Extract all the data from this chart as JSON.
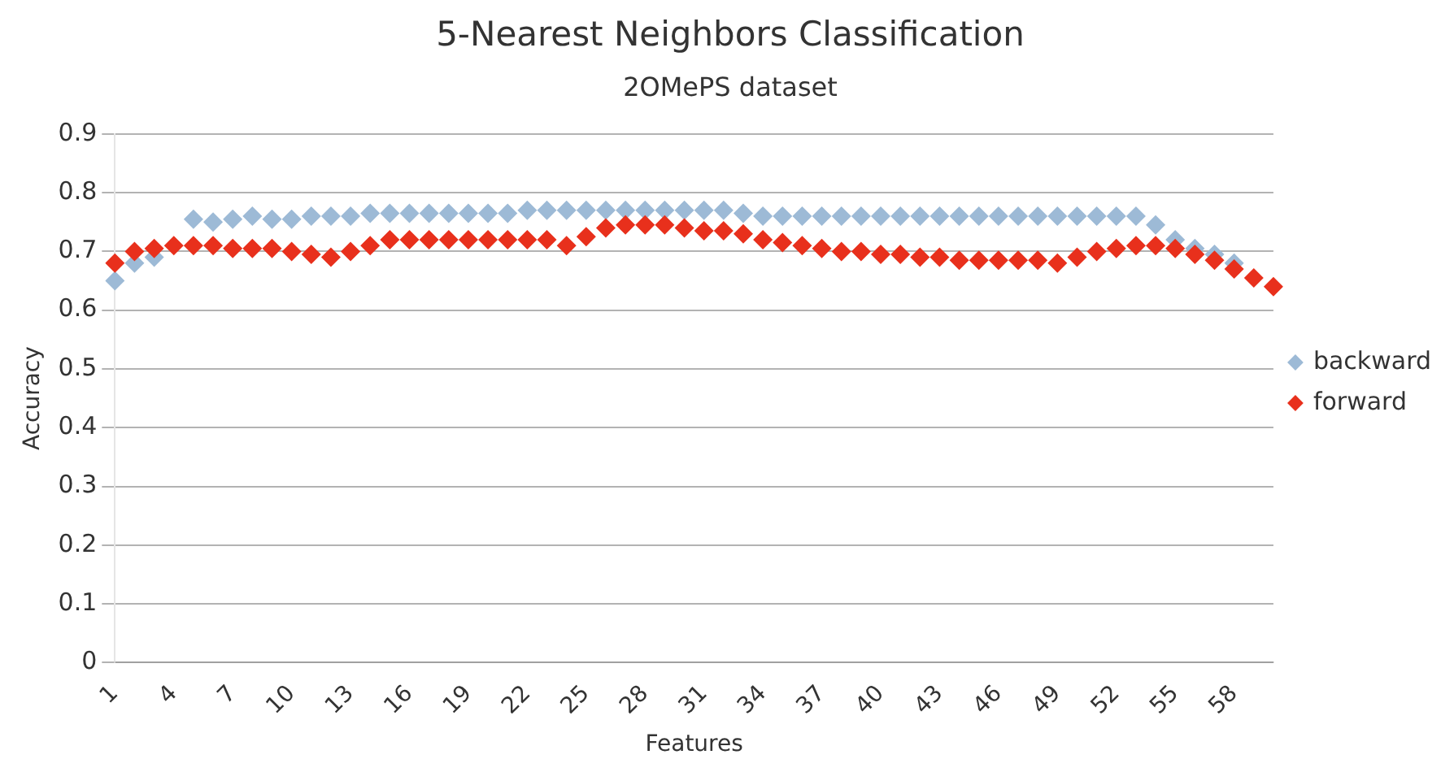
{
  "chart_data": {
    "type": "scatter",
    "title": "5-Nearest Neighbors Classification",
    "subtitle": "2OMePS dataset",
    "xlabel": "Features",
    "ylabel": "Accuracy",
    "categories": [
      "1",
      null,
      null,
      "4",
      null,
      null,
      "7",
      null,
      null,
      "10",
      null,
      null,
      "13",
      null,
      null,
      "16",
      null,
      null,
      "19",
      null,
      null,
      "22",
      null,
      null,
      "25",
      null,
      null,
      "28",
      null,
      null,
      "31",
      null,
      null,
      "34",
      null,
      null,
      "37",
      null,
      null,
      "40",
      null,
      null,
      "43",
      null,
      null,
      "46",
      null,
      null,
      "49",
      null,
      null,
      "52",
      null,
      null,
      "55",
      null,
      null,
      "58",
      null,
      null
    ],
    "series": [
      {
        "name": "backward",
        "color": "#9dbad6",
        "values": [
          0.65,
          0.68,
          0.69,
          null,
          0.755,
          0.75,
          0.755,
          0.76,
          0.755,
          0.755,
          0.76,
          0.76,
          0.76,
          0.765,
          0.765,
          0.765,
          0.765,
          0.765,
          0.765,
          0.765,
          0.765,
          0.77,
          0.77,
          0.77,
          0.77,
          0.77,
          0.77,
          0.77,
          0.77,
          0.77,
          0.77,
          0.77,
          0.765,
          0.76,
          0.76,
          0.76,
          0.76,
          0.76,
          0.76,
          0.76,
          0.76,
          0.76,
          0.76,
          0.76,
          0.76,
          0.76,
          0.76,
          0.76,
          0.76,
          0.76,
          0.76,
          0.76,
          0.76,
          0.745,
          0.72,
          0.705,
          0.695,
          0.68,
          null,
          null
        ]
      },
      {
        "name": "forward",
        "color": "#e8301c",
        "values": [
          0.68,
          0.7,
          0.705,
          0.71,
          0.71,
          0.71,
          0.705,
          0.705,
          0.705,
          0.7,
          0.695,
          0.69,
          0.7,
          0.71,
          0.72,
          0.72,
          0.72,
          0.72,
          0.72,
          0.72,
          0.72,
          0.72,
          0.72,
          0.71,
          0.725,
          0.74,
          0.745,
          0.745,
          0.745,
          0.74,
          0.735,
          0.735,
          0.73,
          0.72,
          0.715,
          0.71,
          0.705,
          0.7,
          0.7,
          0.695,
          0.695,
          0.69,
          0.69,
          0.685,
          0.685,
          0.685,
          0.685,
          0.685,
          0.68,
          0.69,
          0.7,
          0.705,
          0.71,
          0.71,
          0.705,
          0.695,
          0.685,
          0.67,
          0.655,
          0.64
        ]
      }
    ],
    "ylim": [
      0,
      0.9
    ],
    "yticks": [
      0,
      0.1,
      0.2,
      0.3,
      0.4,
      0.5,
      0.6,
      0.7,
      0.8,
      0.9
    ],
    "grid": "y",
    "legend": "right",
    "marker": "diamond"
  }
}
